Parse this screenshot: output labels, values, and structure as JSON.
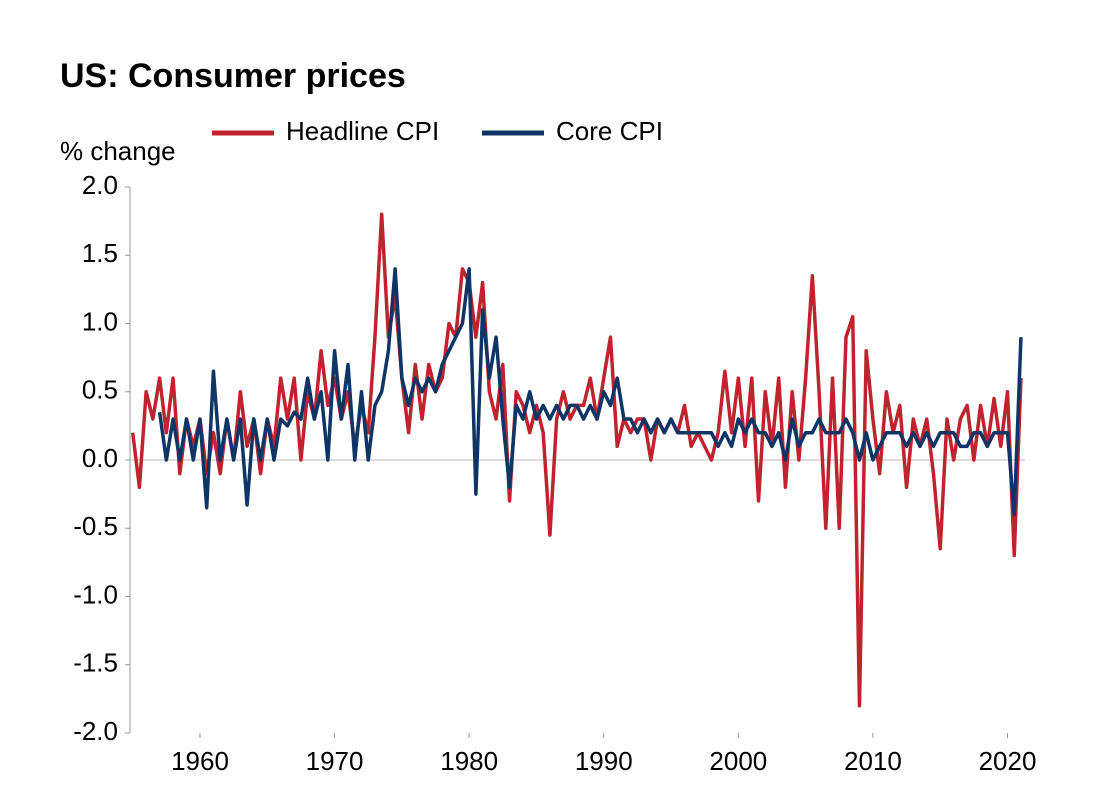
{
  "chart_data": {
    "type": "line",
    "title": "US: Consumer prices",
    "y_label": "% change",
    "xlim": [
      1954.8,
      2021.3
    ],
    "xticks": [
      1960,
      1970,
      1980,
      1990,
      2000,
      2010,
      2020
    ],
    "ylim": [
      -2,
      2
    ],
    "yticks": [
      {
        "value": -2,
        "label": "-2.0"
      },
      {
        "value": -1.5,
        "label": "-1.5"
      },
      {
        "value": -1,
        "label": "-1.0"
      },
      {
        "value": -0.5,
        "label": "-0.5"
      },
      {
        "value": 0,
        "label": "0.0"
      },
      {
        "value": 0.5,
        "label": "0.5"
      },
      {
        "value": 1,
        "label": "1.0"
      },
      {
        "value": 1.5,
        "label": "1.5"
      },
      {
        "value": 2,
        "label": "2.0"
      }
    ],
    "grid": false,
    "legend": "top",
    "x": [
      1955,
      1955.5,
      1956,
      1956.5,
      1957,
      1957.5,
      1958,
      1958.5,
      1959,
      1959.5,
      1960,
      1960.5,
      1961,
      1961.5,
      1962,
      1962.5,
      1963,
      1963.5,
      1964,
      1964.5,
      1965,
      1965.5,
      1966,
      1966.5,
      1967,
      1967.5,
      1968,
      1968.5,
      1969,
      1969.5,
      1970,
      1970.5,
      1971,
      1971.5,
      1972,
      1972.5,
      1973,
      1973.5,
      1974,
      1974.5,
      1975,
      1975.5,
      1976,
      1976.5,
      1977,
      1977.5,
      1978,
      1978.5,
      1979,
      1979.5,
      1980,
      1980.5,
      1981,
      1981.5,
      1982,
      1982.5,
      1983,
      1983.5,
      1984,
      1984.5,
      1985,
      1985.5,
      1986,
      1986.5,
      1987,
      1987.5,
      1988,
      1988.5,
      1989,
      1989.5,
      1990,
      1990.5,
      1991,
      1991.5,
      1992,
      1992.5,
      1993,
      1993.5,
      1994,
      1994.5,
      1995,
      1995.5,
      1996,
      1996.5,
      1997,
      1997.5,
      1998,
      1998.5,
      1999,
      1999.5,
      2000,
      2000.5,
      2001,
      2001.5,
      2002,
      2002.5,
      2003,
      2003.5,
      2004,
      2004.5,
      2005,
      2005.5,
      2006,
      2006.5,
      2007,
      2007.5,
      2008,
      2008.5,
      2009,
      2009.5,
      2010,
      2010.5,
      2011,
      2011.5,
      2012,
      2012.5,
      2013,
      2013.5,
      2014,
      2014.5,
      2015,
      2015.5,
      2016,
      2016.5,
      2017,
      2017.5,
      2018,
      2018.5,
      2019,
      2019.5,
      2020,
      2020.5,
      2021
    ],
    "series": [
      {
        "name": "Headline CPI",
        "color": "#c0232e",
        "values": [
          0.2,
          -0.2,
          0.5,
          0.3,
          0.6,
          0.2,
          0.6,
          -0.1,
          0.3,
          0.1,
          0.3,
          -0.1,
          0.2,
          -0.1,
          0.3,
          0,
          0.5,
          0.1,
          0.3,
          -0.1,
          0.3,
          0.1,
          0.6,
          0.3,
          0.6,
          0,
          0.5,
          0.3,
          0.8,
          0.4,
          0.6,
          0.3,
          0.5,
          0.1,
          0.4,
          0.2,
          0.9,
          1.8,
          0.9,
          1.2,
          0.6,
          0.2,
          0.7,
          0.3,
          0.7,
          0.5,
          0.6,
          1.0,
          0.9,
          1.4,
          1.3,
          0.9,
          1.3,
          0.5,
          0.3,
          0.7,
          -0.3,
          0.5,
          0.4,
          0.2,
          0.4,
          0.2,
          -0.55,
          0.3,
          0.5,
          0.3,
          0.4,
          0.4,
          0.6,
          0.3,
          0.6,
          0.9,
          0.1,
          0.3,
          0.2,
          0.3,
          0.3,
          0,
          0.3,
          0.2,
          0.3,
          0.2,
          0.4,
          0.1,
          0.2,
          0.1,
          0,
          0.2,
          0.65,
          0.2,
          0.6,
          0.1,
          0.6,
          -0.3,
          0.5,
          0.1,
          0.6,
          -0.2,
          0.5,
          0,
          0.6,
          1.35,
          0.5,
          -0.5,
          0.6,
          -0.5,
          0.9,
          1.05,
          -1.8,
          0.8,
          0.3,
          -0.1,
          0.5,
          0.2,
          0.4,
          -0.2,
          0.3,
          0.1,
          0.3,
          -0.1,
          -0.65,
          0.3,
          0,
          0.3,
          0.4,
          0,
          0.4,
          0.1,
          0.45,
          0.1,
          0.5,
          -0.7,
          0.6
        ]
      },
      {
        "name": "Core CPI",
        "color": "#0f3566",
        "values": [
          null,
          null,
          null,
          null,
          0.35,
          0,
          0.3,
          0,
          0.3,
          0,
          0.3,
          -0.35,
          0.65,
          0,
          0.3,
          0,
          0.3,
          -0.33,
          0.3,
          0,
          0.3,
          0,
          0.3,
          0.25,
          0.35,
          0.3,
          0.6,
          0.3,
          0.5,
          0,
          0.8,
          0.3,
          0.7,
          0,
          0.5,
          0,
          0.4,
          0.5,
          0.8,
          1.4,
          0.6,
          0.4,
          0.6,
          0.5,
          0.6,
          0.5,
          0.7,
          0.8,
          0.9,
          1.0,
          1.4,
          -0.25,
          1.1,
          0.6,
          0.9,
          0.3,
          -0.2,
          0.4,
          0.3,
          0.5,
          0.3,
          0.4,
          0.3,
          0.4,
          0.3,
          0.4,
          0.4,
          0.3,
          0.4,
          0.3,
          0.5,
          0.4,
          0.6,
          0.3,
          0.3,
          0.2,
          0.3,
          0.2,
          0.3,
          0.2,
          0.3,
          0.2,
          0.2,
          0.2,
          0.2,
          0.2,
          0.2,
          0.1,
          0.2,
          0.1,
          0.3,
          0.2,
          0.3,
          0.2,
          0.2,
          0.1,
          0.2,
          0,
          0.3,
          0.1,
          0.2,
          0.2,
          0.3,
          0.2,
          0.2,
          0.2,
          0.3,
          0.2,
          0,
          0.2,
          0,
          0.1,
          0.2,
          0.2,
          0.2,
          0.1,
          0.2,
          0.1,
          0.2,
          0.1,
          0.2,
          0.2,
          0.2,
          0.1,
          0.1,
          0.2,
          0.2,
          0.1,
          0.2,
          0.2,
          0.2,
          -0.4,
          0.9
        ]
      }
    ]
  }
}
